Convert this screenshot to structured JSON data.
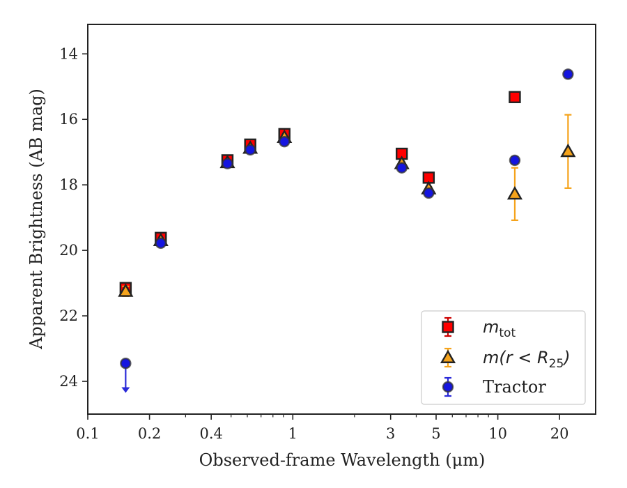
{
  "chart_data": {
    "type": "scatter",
    "xlabel": "Observed-frame Wavelength (μm)",
    "ylabel": "Apparent Brightness (AB mag)",
    "x_scale": "log",
    "xlim": [
      0.1,
      30
    ],
    "ylim": [
      25.0,
      13.1
    ],
    "y_inverted": true,
    "x_ticks": [
      0.1,
      0.2,
      0.4,
      1,
      3,
      5,
      10,
      20
    ],
    "x_tick_labels": [
      "0.1",
      "0.2",
      "0.4",
      "1",
      "3",
      "5",
      "10",
      "20"
    ],
    "y_ticks": [
      14,
      16,
      18,
      20,
      22,
      24
    ],
    "y_tick_labels": [
      "14",
      "16",
      "18",
      "20",
      "22",
      "24"
    ],
    "grid": false,
    "legend_position": "bottom-right",
    "legend": [
      {
        "label": "m",
        "sub": "tot",
        "marker": "square"
      },
      {
        "label": "m(r < R",
        "sub": "25",
        "suffix": ")",
        "marker": "triangle"
      },
      {
        "label": "Tractor",
        "marker": "circle"
      }
    ],
    "series": [
      {
        "marker": "square",
        "color": "#ff0000",
        "error_color": "#cc0000",
        "points": [
          {
            "x": 0.153,
            "y": 21.15,
            "err": 0.08
          },
          {
            "x": 0.227,
            "y": 19.62,
            "err": 0.06
          },
          {
            "x": 0.48,
            "y": 17.25,
            "err": 0.05
          },
          {
            "x": 0.62,
            "y": 16.77,
            "err": 0.05
          },
          {
            "x": 0.91,
            "y": 16.45,
            "err": 0.05
          },
          {
            "x": 3.4,
            "y": 17.05,
            "err": 0.04
          },
          {
            "x": 4.6,
            "y": 17.78,
            "err": 0.04
          },
          {
            "x": 12.1,
            "y": 15.32,
            "err": 0.04
          }
        ]
      },
      {
        "marker": "triangle",
        "color": "#f5a31b",
        "error_color": "#f5a31b",
        "points": [
          {
            "x": 0.153,
            "y": 21.25,
            "err": 0.15
          },
          {
            "x": 0.227,
            "y": 19.7,
            "err": 0.05
          },
          {
            "x": 0.48,
            "y": 17.32,
            "err": 0.05
          },
          {
            "x": 0.62,
            "y": 16.88,
            "err": 0.05
          },
          {
            "x": 0.91,
            "y": 16.55,
            "err": 0.05
          },
          {
            "x": 3.4,
            "y": 17.35,
            "err": 0.05
          },
          {
            "x": 4.6,
            "y": 18.12,
            "err": 0.06
          },
          {
            "x": 12.1,
            "y": 18.28,
            "err": 0.8
          },
          {
            "x": 22.0,
            "y": 16.98,
            "err": 1.12
          }
        ]
      },
      {
        "marker": "circle",
        "color": "#1515e0",
        "error_color": "#2a2ad8",
        "points": [
          {
            "x": 0.153,
            "y": 23.45,
            "upper_limit": true,
            "arrow_to": 24.35
          },
          {
            "x": 0.227,
            "y": 19.78,
            "err": 0.04
          },
          {
            "x": 0.48,
            "y": 17.35,
            "err": 0.04
          },
          {
            "x": 0.62,
            "y": 16.93,
            "err": 0.04
          },
          {
            "x": 0.91,
            "y": 16.68,
            "err": 0.04
          },
          {
            "x": 3.4,
            "y": 17.48,
            "err": 0.04
          },
          {
            "x": 4.6,
            "y": 18.25,
            "err": 0.05
          },
          {
            "x": 12.1,
            "y": 17.25,
            "err": 0.1
          },
          {
            "x": 22.0,
            "y": 14.62,
            "err": 0.07
          }
        ]
      }
    ]
  }
}
